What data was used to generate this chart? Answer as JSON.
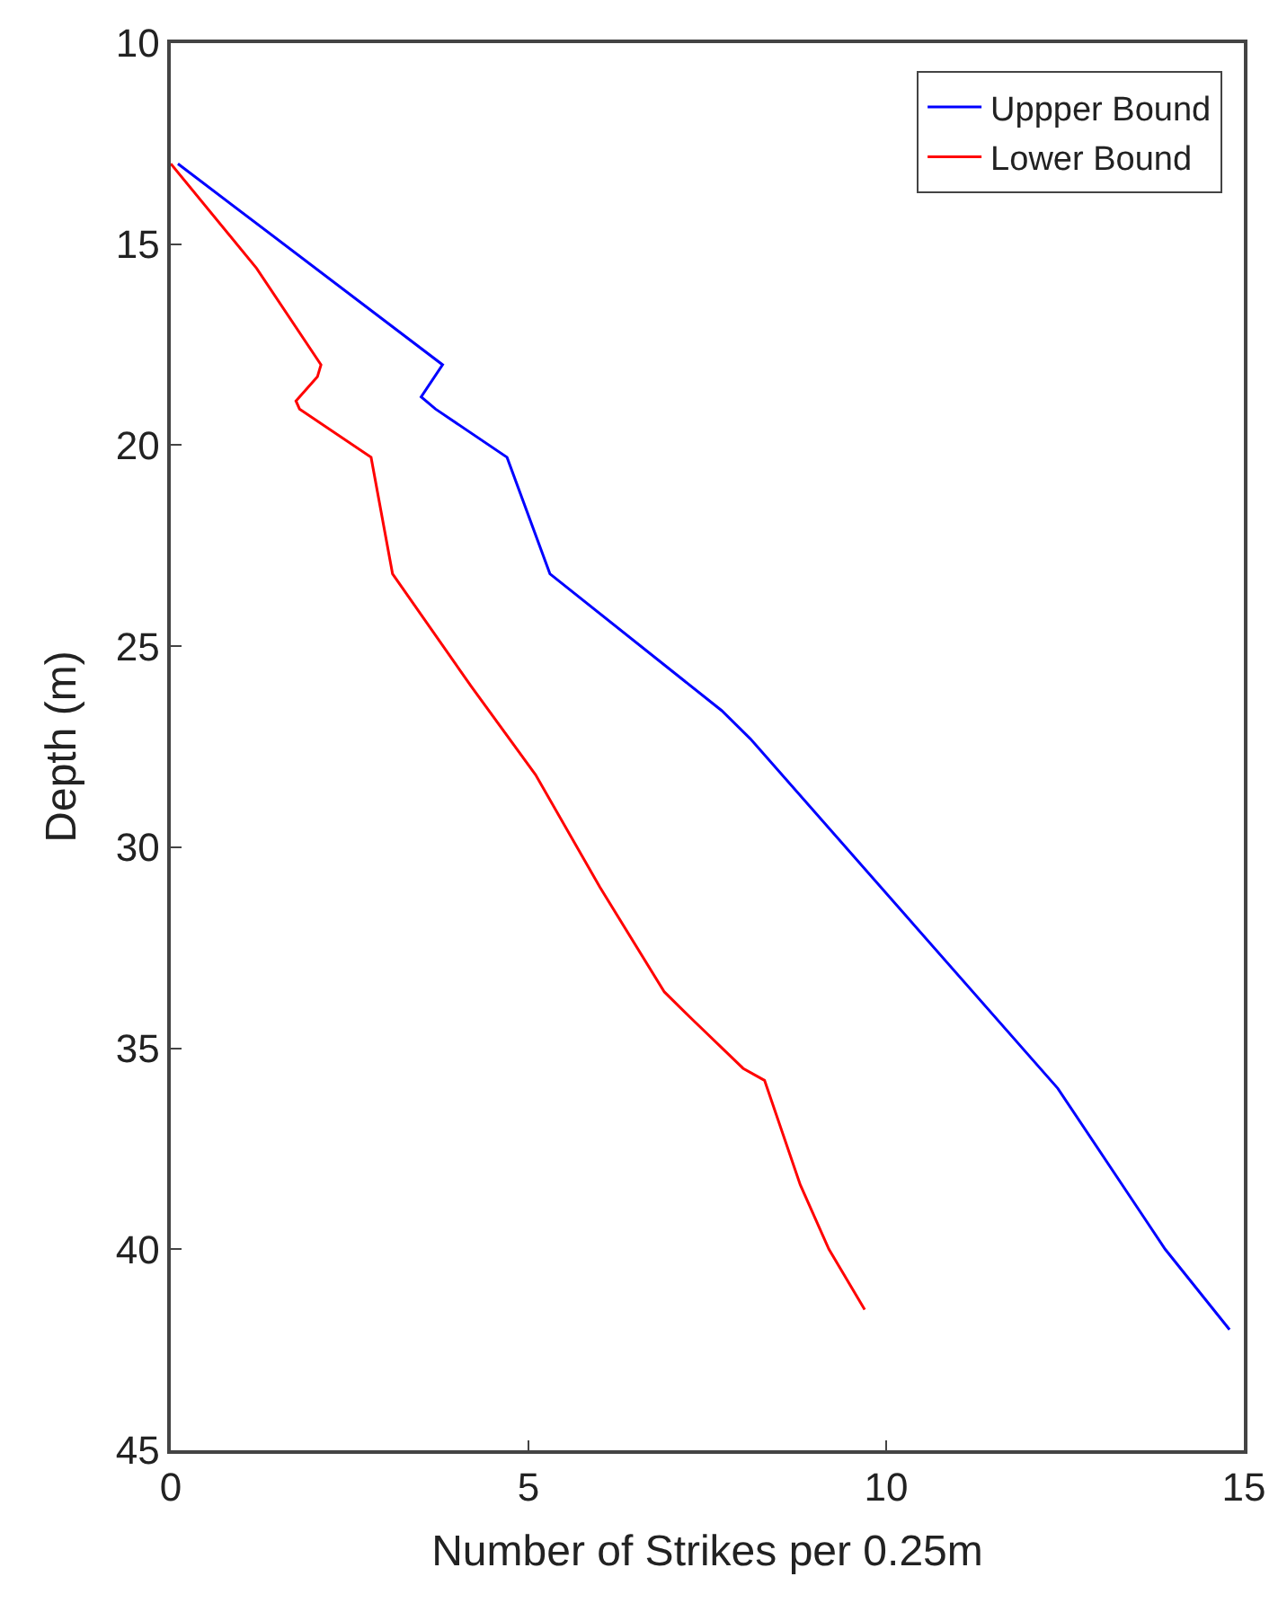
{
  "chart_data": {
    "type": "line",
    "xlabel": "Number of Strikes per 0.25m",
    "ylabel": "Depth (m)",
    "xlim": [
      0,
      15
    ],
    "xticks": [
      0,
      5,
      10,
      15
    ],
    "ylim": [
      45,
      10
    ],
    "yticks": [
      10,
      15,
      20,
      25,
      30,
      35,
      40,
      45
    ],
    "legend": "top right",
    "marker": "none",
    "line_style": "solid",
    "series": [
      {
        "name": "Uppper Bound",
        "color": "#0000ff",
        "x": [
          0.1,
          3.8,
          3.5,
          3.7,
          4.7,
          5.3,
          7.7,
          8.1,
          12.4,
          13.9,
          14.8
        ],
        "values": [
          13,
          18.0,
          18.8,
          19.1,
          20.3,
          23.2,
          26.6,
          27.3,
          36.0,
          40.0,
          42.0
        ]
      },
      {
        "name": "Lower Bound",
        "color": "#ff0000",
        "x": [
          0.0,
          1.2,
          2.1,
          2.05,
          1.75,
          1.8,
          2.8,
          3.1,
          4.2,
          5.1,
          6.0,
          6.9,
          7.3,
          8.0,
          8.3,
          8.8,
          9.2,
          9.7
        ],
        "values": [
          13,
          15.6,
          18.0,
          18.3,
          18.9,
          19.1,
          20.3,
          23.2,
          26.0,
          28.2,
          31.0,
          33.6,
          34.3,
          35.5,
          35.8,
          38.4,
          40.0,
          41.5
        ]
      }
    ]
  }
}
